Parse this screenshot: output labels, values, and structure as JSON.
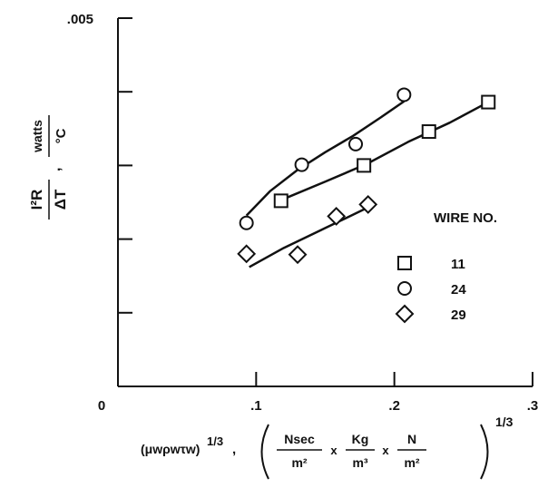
{
  "chart_data": {
    "type": "scatter",
    "title": "",
    "xlim": [
      0,
      0.3
    ],
    "ylim": [
      0,
      0.005
    ],
    "x_ticks": [
      0,
      0.1,
      0.2,
      0.3
    ],
    "x_tick_labels": [
      "0",
      ".1",
      ".2",
      ".3"
    ],
    "y_ticks": [
      0,
      0.001,
      0.002,
      0.003,
      0.004,
      0.005
    ],
    "y_tick_labels": [
      ".005"
    ],
    "ylabel": {
      "numerator": "I²R",
      "denominator": "ΔT",
      "unit_numerator": "watts",
      "unit_denominator": "°C"
    },
    "xlabel": {
      "expression": "(μwρwτw)",
      "expression_exponent": "1/3",
      "unit_a_num": "Nsec",
      "unit_a_den": "m²",
      "unit_b_num": "Kg",
      "unit_b_den": "m³",
      "unit_c_num": "N",
      "unit_c_den": "m²",
      "unit_exponent": "1/3"
    },
    "legend": {
      "title": "WIRE NO.",
      "placement": "right"
    },
    "series": [
      {
        "name": "11",
        "marker": "square",
        "points": [
          [
            0.118,
            0.00252
          ],
          [
            0.178,
            0.003
          ],
          [
            0.225,
            0.00346
          ],
          [
            0.268,
            0.00386
          ]
        ],
        "fit": [
          [
            0.118,
            0.00253
          ],
          [
            0.15,
            0.00278
          ],
          [
            0.18,
            0.00302
          ],
          [
            0.21,
            0.00332
          ],
          [
            0.24,
            0.00358
          ],
          [
            0.268,
            0.00386
          ]
        ]
      },
      {
        "name": "24",
        "marker": "circle",
        "points": [
          [
            0.093,
            0.00222
          ],
          [
            0.133,
            0.00301
          ],
          [
            0.172,
            0.00329
          ],
          [
            0.207,
            0.00396
          ]
        ],
        "fit": [
          [
            0.093,
            0.00232
          ],
          [
            0.11,
            0.00265
          ],
          [
            0.13,
            0.00294
          ],
          [
            0.15,
            0.00318
          ],
          [
            0.17,
            0.0034
          ],
          [
            0.19,
            0.00365
          ],
          [
            0.207,
            0.00387
          ]
        ]
      },
      {
        "name": "29",
        "marker": "diamond",
        "points": [
          [
            0.093,
            0.0018
          ],
          [
            0.13,
            0.00179
          ],
          [
            0.158,
            0.00231
          ],
          [
            0.181,
            0.00247
          ]
        ],
        "fit": [
          [
            0.095,
            0.00162
          ],
          [
            0.12,
            0.00188
          ],
          [
            0.15,
            0.00215
          ],
          [
            0.181,
            0.00243
          ]
        ]
      }
    ]
  }
}
